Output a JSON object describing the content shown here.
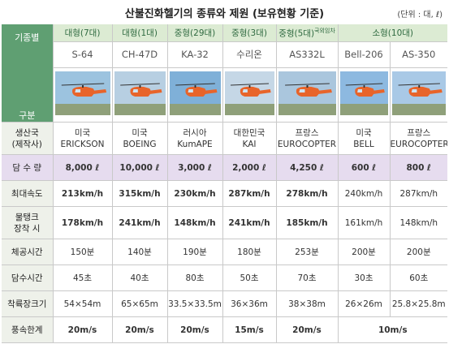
{
  "header": {
    "title": "산불진화헬기의 종류와 제원 (보유현황 기준)",
    "unit": "(단위 : 대, ℓ)"
  },
  "table": {
    "corner_top": "기종별",
    "corner_bottom": "구분",
    "groups": [
      {
        "label": "대형(7대)",
        "models": [
          "S-64"
        ]
      },
      {
        "label": "대형(1대)",
        "models": [
          "CH-47D"
        ]
      },
      {
        "label": "중형(29대)",
        "models": [
          "KA-32"
        ]
      },
      {
        "label": "중형(3대)",
        "models": [
          "수리온"
        ]
      },
      {
        "label": "중형(5대)",
        "note": "국외임차",
        "models": [
          "AS332L"
        ]
      },
      {
        "label": "소형(10대)",
        "models": [
          "Bell-206",
          "AS-350"
        ]
      }
    ],
    "rows": [
      {
        "label": [
          "생산국",
          "(제작사)"
        ],
        "cells": [
          [
            "미국",
            "ERICKSON"
          ],
          [
            "미국",
            "BOEING"
          ],
          [
            "러시아",
            "KumAPE"
          ],
          [
            "대한민국",
            "KAI"
          ],
          [
            "프랑스",
            "EUROCOPTER"
          ],
          [
            "미국",
            "BELL"
          ],
          [
            "프랑스",
            "EUROCOPTER"
          ]
        ]
      },
      {
        "label": [
          "담 수 량"
        ],
        "shaded": true,
        "cells": [
          [
            "8,000 ℓ"
          ],
          [
            "10,000 ℓ"
          ],
          [
            "3,000 ℓ"
          ],
          [
            "2,000 ℓ"
          ],
          [
            "4,250 ℓ"
          ],
          [
            "600 ℓ"
          ],
          [
            "800 ℓ"
          ]
        ]
      },
      {
        "label": [
          "최대속도"
        ],
        "cells": [
          [
            "213km/h"
          ],
          [
            "315km/h"
          ],
          [
            "230km/h"
          ],
          [
            "287km/h"
          ],
          [
            "278km/h"
          ],
          [
            "240km/h"
          ],
          [
            "287km/h"
          ]
        ]
      },
      {
        "label": [
          "물탱크",
          "장착 시"
        ],
        "cells": [
          [
            "178km/h"
          ],
          [
            "241km/h"
          ],
          [
            "148km/h"
          ],
          [
            "241km/h"
          ],
          [
            "185km/h"
          ],
          [
            "161km/h"
          ],
          [
            "148km/h"
          ]
        ]
      },
      {
        "label": [
          "체공시간"
        ],
        "cells": [
          [
            "150분"
          ],
          [
            "140분"
          ],
          [
            "190분"
          ],
          [
            "180분"
          ],
          [
            "253분"
          ],
          [
            "200분"
          ],
          [
            "200분"
          ]
        ]
      },
      {
        "label": [
          "담수시간"
        ],
        "cells": [
          [
            "45초"
          ],
          [
            "40초"
          ],
          [
            "80초"
          ],
          [
            "50초"
          ],
          [
            "70초"
          ],
          [
            "30초"
          ],
          [
            "60초"
          ]
        ]
      },
      {
        "label": [
          "착륙장크기"
        ],
        "cells": [
          [
            "54×54m"
          ],
          [
            "65×65m"
          ],
          [
            "33.5×33.5m"
          ],
          [
            "36×36m"
          ],
          [
            "38×38m"
          ],
          [
            "26×26m"
          ],
          [
            "25.8×25.8m"
          ]
        ]
      },
      {
        "label": [
          "풍속한계"
        ],
        "cells": [
          [
            "20m/s"
          ],
          [
            "20m/s"
          ],
          [
            "20m/s"
          ],
          [
            "15m/s"
          ],
          [
            "20m/s"
          ],
          [
            "10m/s"
          ]
        ]
      }
    ]
  }
}
